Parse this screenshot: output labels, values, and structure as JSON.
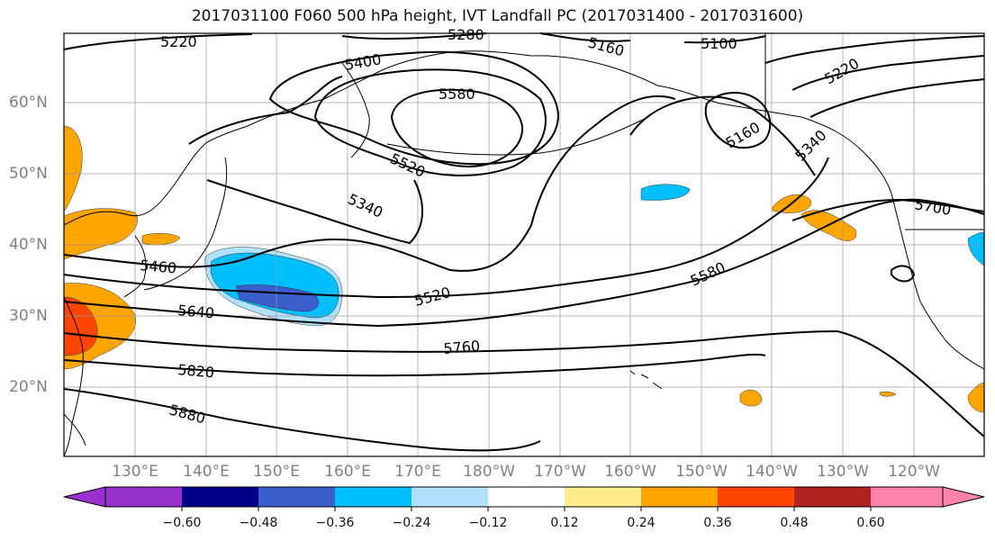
{
  "title": "2017031100 F060 500 hPa height, IVT Landfall PC (2017031400 - 2017031600)",
  "map": {
    "lat_ticks": [
      "60°N",
      "50°N",
      "40°N",
      "30°N",
      "20°N"
    ],
    "lon_ticks": [
      "130°E",
      "140°E",
      "150°E",
      "160°E",
      "170°E",
      "180°W",
      "170°W",
      "160°W",
      "150°W",
      "140°W",
      "130°W",
      "120°W"
    ],
    "contour_labels": [
      "5220",
      "5280",
      "5160",
      "5100",
      "5400",
      "5580",
      "5220",
      "5160",
      "5520",
      "5340",
      "5460",
      "5640",
      "5520",
      "5580",
      "5760",
      "5820",
      "5880",
      "5700",
      "5340"
    ],
    "contour_color": "#000000",
    "coastline_color": "#000000",
    "gridline_color": "#999999"
  },
  "colorbar": {
    "ticks": [
      "−0.60",
      "−0.48",
      "−0.36",
      "−0.24",
      "−0.12",
      "0.12",
      "0.24",
      "0.36",
      "0.48",
      "0.60"
    ],
    "colors": [
      "#9932cc",
      "#00008b",
      "#3a5fcd",
      "#00bfff",
      "#b0e2ff",
      "#ffffff",
      "#ffec8b",
      "#ffa500",
      "#ff4500",
      "#b22222",
      "#ff82ab"
    ]
  }
}
